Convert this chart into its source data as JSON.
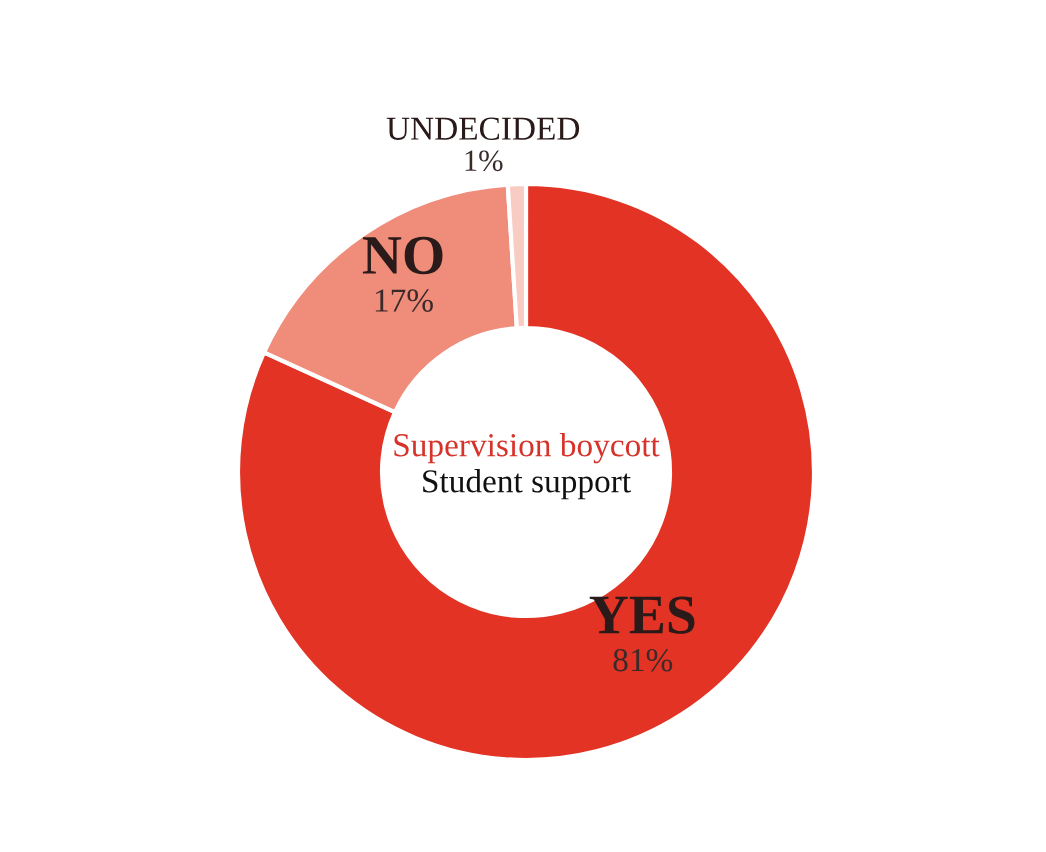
{
  "chart_data": {
    "type": "donut",
    "title": "Supervision boycott",
    "subtitle": "Student support",
    "categories": [
      "YES",
      "NO",
      "UNDECIDED"
    ],
    "values": [
      81,
      17,
      1
    ],
    "colors": [
      "#e23325",
      "#f08c7a",
      "#f8cbc3"
    ],
    "value_labels": [
      "81%",
      "17%",
      "1%"
    ],
    "legend": false
  }
}
